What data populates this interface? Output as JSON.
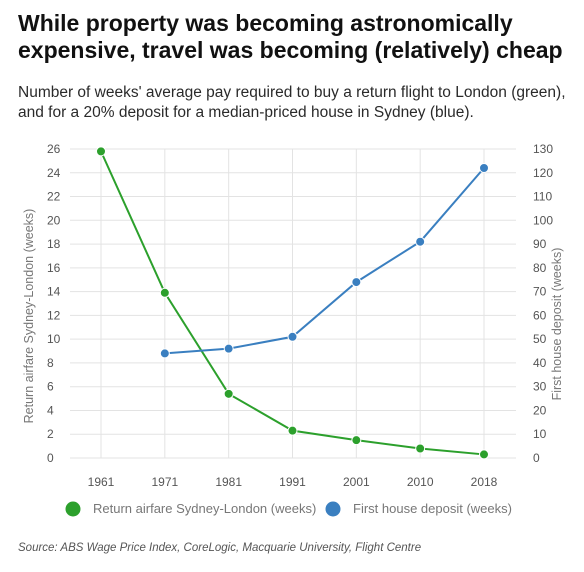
{
  "header": {
    "title": "While property was becoming astronomically expensive, travel was becoming (relatively) cheap",
    "subtitle": "Number of weeks' average pay required to buy a return flight to London (green), and for a 20% deposit for a median-priced house in Sydney (blue)."
  },
  "source": "Source: ABS Wage Price Index, CoreLogic, Macquarie University, Flight Centre",
  "chart_data": {
    "type": "line",
    "x_categories": [
      "1961",
      "1971",
      "1981",
      "1991",
      "2001",
      "2010",
      "2018"
    ],
    "y_left": {
      "label": "Return airfare Sydney-London (weeks)",
      "range": [
        0,
        26
      ],
      "ticks": [
        0,
        2,
        4,
        6,
        8,
        10,
        12,
        14,
        16,
        18,
        20,
        22,
        24,
        26
      ]
    },
    "y_right": {
      "label": "First house deposit (weeks)",
      "range": [
        0,
        130
      ],
      "ticks": [
        0,
        10,
        20,
        30,
        40,
        50,
        60,
        70,
        80,
        90,
        100,
        110,
        120,
        130
      ]
    },
    "grid": true,
    "legend_position": "bottom",
    "series": [
      {
        "name": "Return airfare Sydney-London (weeks)",
        "axis": "left",
        "color": "#2ca02c",
        "x": [
          "1961",
          "1971",
          "1981",
          "1991",
          "2001",
          "2010",
          "2018"
        ],
        "values": [
          25.8,
          13.9,
          5.4,
          2.3,
          1.5,
          0.8,
          0.3
        ]
      },
      {
        "name": "First house deposit (weeks)",
        "axis": "right",
        "color": "#3a7fc0",
        "x": [
          "1971",
          "1981",
          "1991",
          "2001",
          "2010",
          "2018"
        ],
        "values": [
          44,
          46,
          51,
          74,
          91,
          122
        ]
      }
    ]
  }
}
